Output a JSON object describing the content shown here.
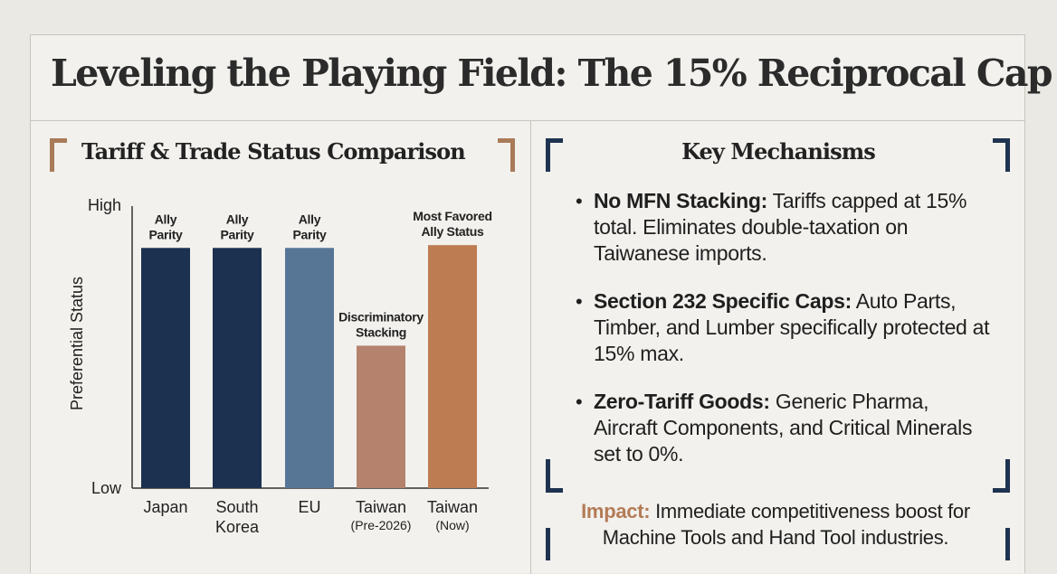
{
  "page": {
    "title": "Leveling the Playing Field: The 15% Reciprocal Cap"
  },
  "chart_data": {
    "type": "bar",
    "title": "Tariff & Trade Status Comparison",
    "ylabel": "Preferential Status",
    "xlabel": "",
    "y_tick_labels": [
      "High",
      "Low"
    ],
    "ylim": [
      0,
      100
    ],
    "categories": [
      {
        "line1": "Japan",
        "line2": ""
      },
      {
        "line1": "South",
        "line2": "Korea"
      },
      {
        "line1": "EU",
        "line2": ""
      },
      {
        "line1": "Taiwan",
        "line2": "(Pre-2026)"
      },
      {
        "line1": "Taiwan",
        "line2": "(Now)"
      }
    ],
    "values": [
      86,
      86,
      86,
      51,
      87
    ],
    "bar_labels": [
      {
        "line1": "Ally",
        "line2": "Parity"
      },
      {
        "line1": "Ally",
        "line2": "Parity"
      },
      {
        "line1": "Ally",
        "line2": "Parity"
      },
      {
        "line1": "Discriminatory",
        "line2": "Stacking"
      },
      {
        "line1": "Most Favored",
        "line2": "Ally Status"
      }
    ],
    "colors": [
      "#1c3150",
      "#1c3150",
      "#577696",
      "#b5836d",
      "#bd7c52"
    ]
  },
  "mechanisms": {
    "title": "Key Mechanisms",
    "items": [
      {
        "label": "No MFN Stacking:",
        "text": " Tariffs capped at 15% total. Eliminates double-taxation on Taiwanese imports."
      },
      {
        "label": "Section 232 Specific Caps:",
        "text": " Auto Parts, Timber, and Lumber specifically protected at 15% max."
      },
      {
        "label": "Zero-Tariff Goods:",
        "text": " Generic Pharma, Aircraft Components, and Critical Minerals set to 0%."
      }
    ]
  },
  "impact": {
    "label": "Impact:",
    "text": " Immediate competitiveness boost for Machine Tools and Hand Tool industries."
  },
  "colors": {
    "navy": "#1e3350",
    "accent_orange": "#b47c57",
    "background": "#ebe9e4"
  }
}
